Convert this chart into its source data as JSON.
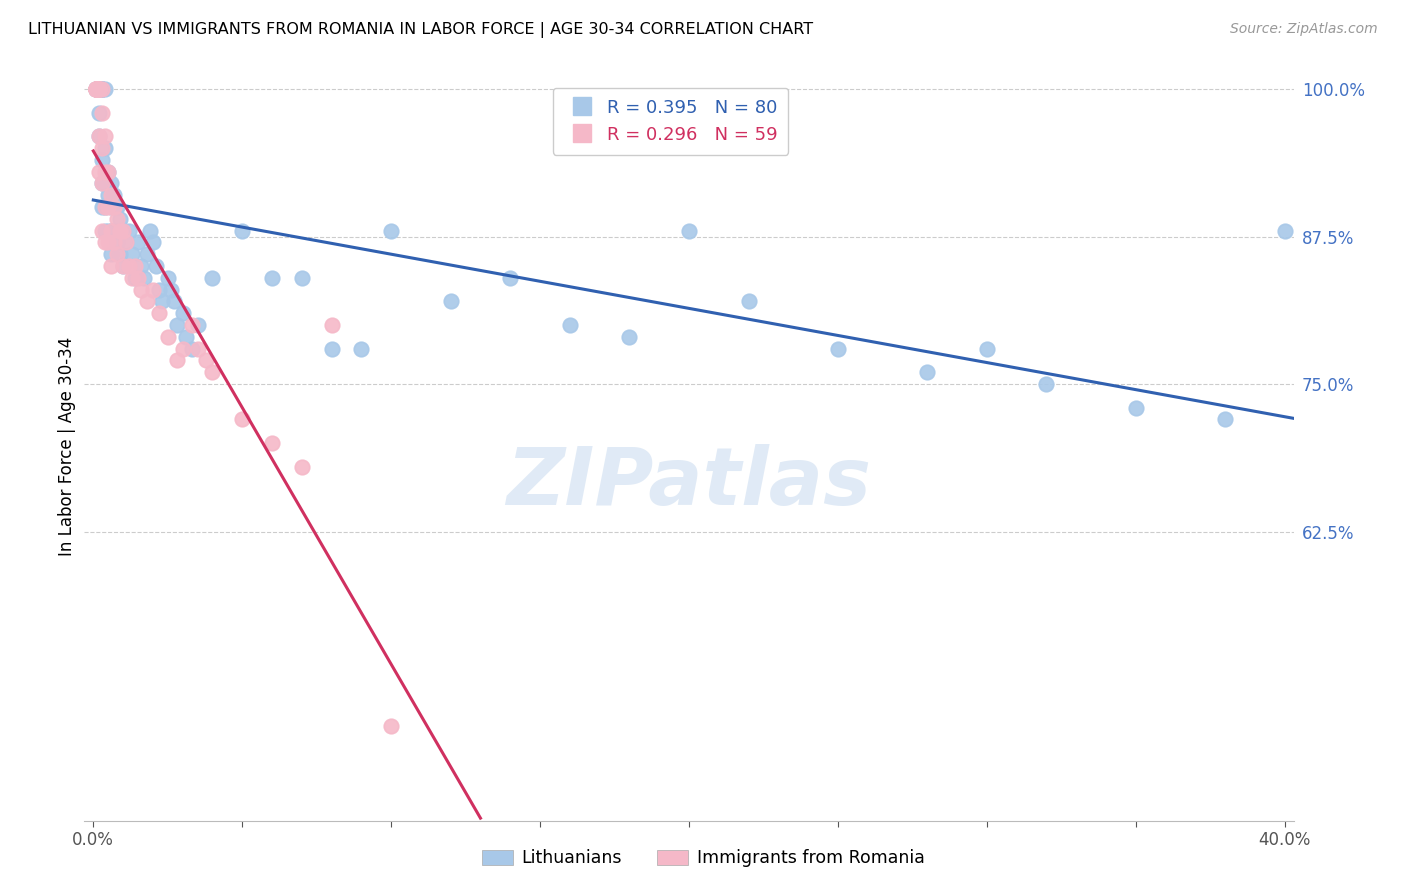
{
  "title": "LITHUANIAN VS IMMIGRANTS FROM ROMANIA IN LABOR FORCE | AGE 30-34 CORRELATION CHART",
  "source": "Source: ZipAtlas.com",
  "ylabel": "In Labor Force | Age 30-34",
  "blue_label": "Lithuanians",
  "pink_label": "Immigrants from Romania",
  "blue_R": 0.395,
  "blue_N": 80,
  "pink_R": 0.296,
  "pink_N": 59,
  "blue_color": "#a8c8e8",
  "pink_color": "#f5b8c8",
  "blue_line_color": "#3060b0",
  "pink_line_color": "#d03060",
  "watermark": "ZIPatlas",
  "xlim": [
    -0.003,
    0.403
  ],
  "ylim": [
    0.38,
    1.015
  ],
  "blue_x": [
    0.001,
    0.001,
    0.001,
    0.001,
    0.002,
    0.002,
    0.002,
    0.002,
    0.002,
    0.002,
    0.002,
    0.002,
    0.003,
    0.003,
    0.003,
    0.003,
    0.003,
    0.003,
    0.003,
    0.004,
    0.004,
    0.004,
    0.004,
    0.004,
    0.005,
    0.005,
    0.005,
    0.006,
    0.006,
    0.006,
    0.006,
    0.007,
    0.007,
    0.008,
    0.008,
    0.009,
    0.009,
    0.01,
    0.01,
    0.011,
    0.012,
    0.013,
    0.014,
    0.015,
    0.016,
    0.017,
    0.018,
    0.019,
    0.02,
    0.021,
    0.022,
    0.023,
    0.025,
    0.026,
    0.027,
    0.028,
    0.03,
    0.031,
    0.033,
    0.035,
    0.04,
    0.05,
    0.06,
    0.07,
    0.08,
    0.09,
    0.1,
    0.12,
    0.14,
    0.16,
    0.18,
    0.2,
    0.22,
    0.25,
    0.28,
    0.3,
    0.32,
    0.35,
    0.38,
    0.4
  ],
  "blue_y": [
    1.0,
    1.0,
    1.0,
    1.0,
    1.0,
    1.0,
    1.0,
    1.0,
    1.0,
    1.0,
    0.98,
    0.96,
    1.0,
    1.0,
    1.0,
    1.0,
    0.94,
    0.92,
    0.9,
    1.0,
    0.95,
    0.92,
    0.9,
    0.88,
    0.93,
    0.91,
    0.88,
    0.92,
    0.9,
    0.88,
    0.86,
    0.91,
    0.88,
    0.9,
    0.87,
    0.89,
    0.86,
    0.88,
    0.85,
    0.87,
    0.88,
    0.86,
    0.84,
    0.87,
    0.85,
    0.84,
    0.86,
    0.88,
    0.87,
    0.85,
    0.83,
    0.82,
    0.84,
    0.83,
    0.82,
    0.8,
    0.81,
    0.79,
    0.78,
    0.8,
    0.84,
    0.88,
    0.84,
    0.84,
    0.78,
    0.78,
    0.88,
    0.82,
    0.84,
    0.8,
    0.79,
    0.88,
    0.82,
    0.78,
    0.76,
    0.78,
    0.75,
    0.73,
    0.72,
    0.88
  ],
  "pink_x": [
    0.001,
    0.001,
    0.001,
    0.001,
    0.001,
    0.001,
    0.001,
    0.001,
    0.001,
    0.001,
    0.002,
    0.002,
    0.002,
    0.002,
    0.002,
    0.002,
    0.003,
    0.003,
    0.003,
    0.003,
    0.003,
    0.004,
    0.004,
    0.004,
    0.004,
    0.005,
    0.005,
    0.005,
    0.006,
    0.006,
    0.006,
    0.007,
    0.007,
    0.008,
    0.008,
    0.009,
    0.01,
    0.01,
    0.011,
    0.012,
    0.013,
    0.014,
    0.015,
    0.016,
    0.018,
    0.02,
    0.022,
    0.025,
    0.028,
    0.03,
    0.033,
    0.035,
    0.038,
    0.04,
    0.05,
    0.06,
    0.07,
    0.08,
    0.1
  ],
  "pink_y": [
    1.0,
    1.0,
    1.0,
    1.0,
    1.0,
    1.0,
    1.0,
    1.0,
    1.0,
    1.0,
    1.0,
    1.0,
    1.0,
    1.0,
    0.96,
    0.93,
    1.0,
    0.98,
    0.95,
    0.92,
    0.88,
    0.96,
    0.93,
    0.9,
    0.87,
    0.93,
    0.9,
    0.87,
    0.91,
    0.88,
    0.85,
    0.9,
    0.87,
    0.89,
    0.86,
    0.88,
    0.88,
    0.85,
    0.87,
    0.85,
    0.84,
    0.85,
    0.84,
    0.83,
    0.82,
    0.83,
    0.81,
    0.79,
    0.77,
    0.78,
    0.8,
    0.78,
    0.77,
    0.76,
    0.72,
    0.7,
    0.68,
    0.8,
    0.46
  ]
}
